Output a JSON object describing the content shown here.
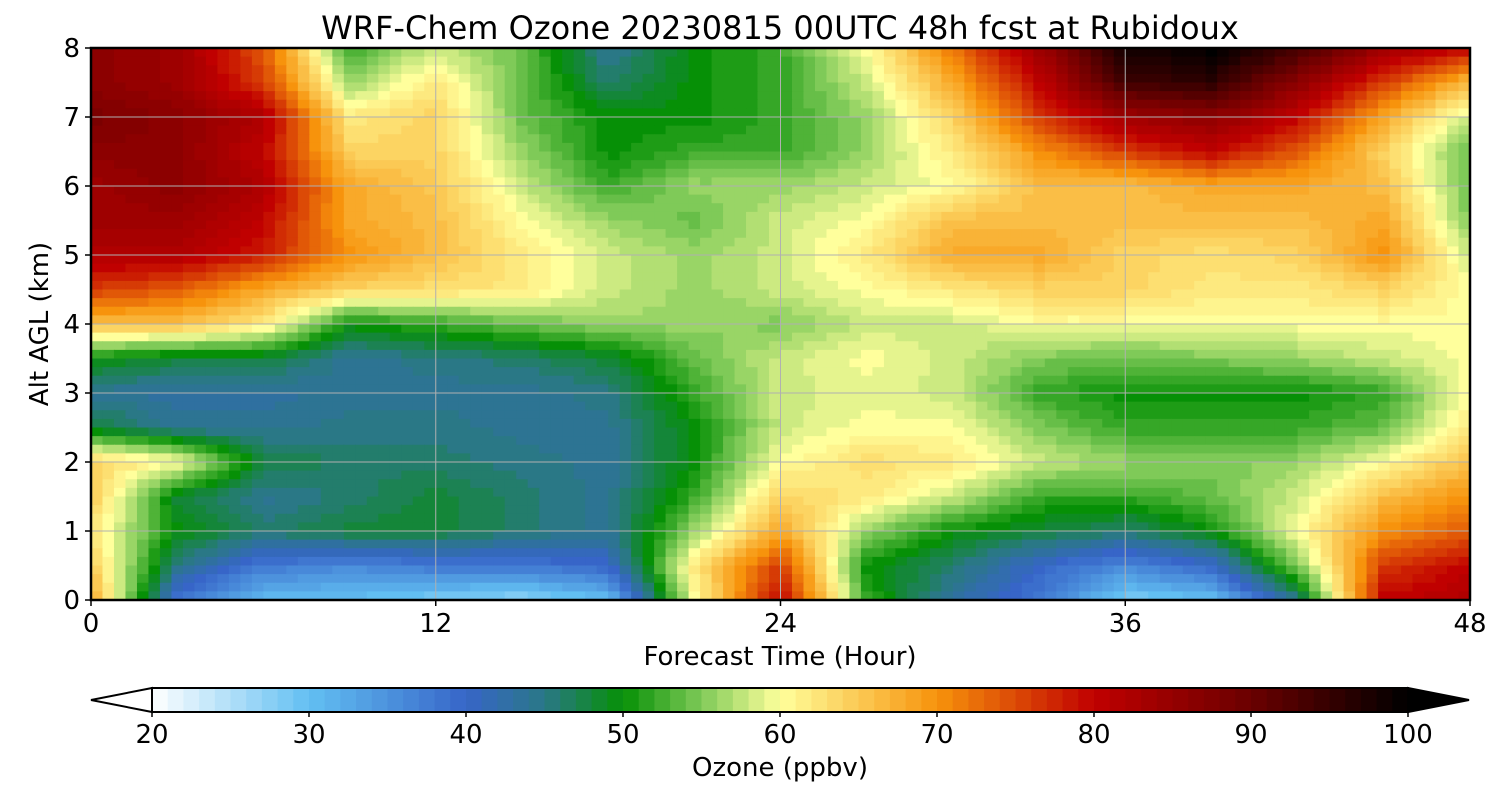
{
  "chart_data": {
    "type": "heatmap",
    "title": "WRF-Chem Ozone  20230815 00UTC 48h fcst at Rubidoux",
    "xlabel": "Forecast Time (Hour)",
    "ylabel": "Alt AGL (km)",
    "xlim": [
      0,
      48
    ],
    "ylim": [
      0,
      8
    ],
    "xticks": [
      0,
      12,
      24,
      36,
      48
    ],
    "yticks": [
      0,
      1,
      2,
      3,
      4,
      5,
      6,
      7,
      8
    ],
    "grid": true,
    "colorbar": {
      "label": "Ozone  (ppbv)",
      "range": [
        20,
        100
      ],
      "ticks": [
        20,
        30,
        40,
        50,
        60,
        70,
        80,
        90,
        100
      ],
      "extend": "both",
      "stops": [
        {
          "v": 20,
          "c": "#ffffff"
        },
        {
          "v": 30,
          "c": "#62bff2"
        },
        {
          "v": 40,
          "c": "#3765c8"
        },
        {
          "v": 45,
          "c": "#2a7886"
        },
        {
          "v": 50,
          "c": "#069006"
        },
        {
          "v": 55,
          "c": "#7fca58"
        },
        {
          "v": 60,
          "c": "#ffff9c"
        },
        {
          "v": 70,
          "c": "#f7930c"
        },
        {
          "v": 80,
          "c": "#c00000"
        },
        {
          "v": 90,
          "c": "#6a0000"
        },
        {
          "v": 100,
          "c": "#000000"
        }
      ]
    },
    "x": [
      0,
      3,
      6,
      9,
      12,
      15,
      18,
      21,
      24,
      27,
      30,
      33,
      36,
      39,
      42,
      45,
      48
    ],
    "y": [
      0,
      0.5,
      1,
      1.5,
      2,
      2.5,
      3,
      3.5,
      4,
      4.5,
      5,
      5.5,
      6,
      6.5,
      7,
      7.5,
      8
    ],
    "z": [
      [
        68,
        38,
        30,
        30,
        28,
        27,
        30,
        60,
        80,
        52,
        43,
        38,
        28,
        30,
        45,
        80,
        82
      ],
      [
        65,
        45,
        38,
        36,
        38,
        38,
        40,
        62,
        76,
        50,
        46,
        40,
        36,
        40,
        55,
        76,
        80
      ],
      [
        62,
        50,
        46,
        48,
        48,
        46,
        44,
        56,
        68,
        56,
        50,
        48,
        46,
        50,
        60,
        70,
        74
      ],
      [
        65,
        48,
        44,
        46,
        48,
        46,
        44,
        52,
        64,
        62,
        58,
        52,
        52,
        54,
        58,
        66,
        70
      ],
      [
        64,
        60,
        48,
        46,
        46,
        45,
        44,
        50,
        60,
        63,
        62,
        58,
        56,
        55,
        56,
        60,
        66
      ],
      [
        48,
        44,
        44,
        45,
        45,
        44,
        44,
        50,
        58,
        60,
        60,
        55,
        52,
        52,
        52,
        54,
        62
      ],
      [
        44,
        43,
        43,
        44,
        44,
        44,
        45,
        52,
        58,
        59,
        58,
        52,
        50,
        50,
        50,
        52,
        60
      ],
      [
        50,
        48,
        48,
        44,
        45,
        46,
        48,
        54,
        58,
        60,
        58,
        55,
        54,
        55,
        56,
        58,
        60
      ],
      [
        66,
        66,
        62,
        50,
        52,
        54,
        56,
        56,
        55,
        58,
        58,
        60,
        60,
        60,
        60,
        60,
        60
      ],
      [
        76,
        74,
        68,
        64,
        63,
        62,
        58,
        56,
        58,
        60,
        62,
        64,
        64,
        62,
        62,
        64,
        60
      ],
      [
        82,
        82,
        78,
        70,
        66,
        62,
        58,
        56,
        58,
        62,
        68,
        68,
        64,
        63,
        64,
        70,
        58
      ],
      [
        84,
        84,
        80,
        68,
        66,
        60,
        56,
        54,
        58,
        60,
        66,
        66,
        66,
        66,
        66,
        68,
        55
      ],
      [
        84,
        86,
        82,
        68,
        65,
        58,
        52,
        56,
        56,
        58,
        60,
        66,
        66,
        68,
        68,
        66,
        54
      ],
      [
        86,
        86,
        80,
        64,
        64,
        56,
        50,
        52,
        52,
        56,
        62,
        70,
        76,
        80,
        74,
        64,
        54
      ],
      [
        88,
        86,
        82,
        62,
        64,
        54,
        50,
        50,
        52,
        56,
        64,
        76,
        84,
        86,
        80,
        68,
        58
      ],
      [
        86,
        84,
        76,
        56,
        62,
        54,
        46,
        50,
        52,
        58,
        68,
        80,
        94,
        96,
        86,
        76,
        66
      ],
      [
        86,
        84,
        74,
        52,
        58,
        54,
        44,
        50,
        52,
        60,
        72,
        84,
        98,
        100,
        94,
        84,
        80
      ]
    ]
  }
}
